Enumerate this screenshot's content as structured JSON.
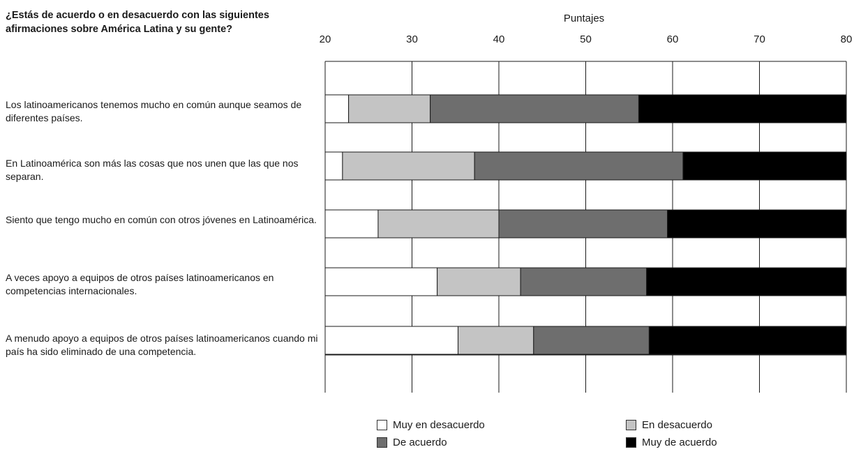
{
  "question": "¿Estás de acuerdo o en desacuerdo con las siguientes afirmaciones sobre América Latina y su gente?",
  "colors": {
    "muy_desacuerdo": "#ffffff",
    "desacuerdo": "#c4c4c4",
    "acuerdo": "#6e6e6e",
    "muy_acuerdo": "#000000",
    "grid": "#1a1a1a"
  },
  "chart_data": {
    "type": "bar",
    "orientation": "horizontal",
    "stacked": true,
    "xlabel": "Puntajes",
    "xlim": [
      20,
      80
    ],
    "xticks": [
      20,
      30,
      40,
      50,
      60,
      70,
      80
    ],
    "grid": true,
    "legend_position": "bottom",
    "categories": [
      "Los latinoamericanos tenemos mucho en común aunque seamos de diferentes países.",
      "En Latinoamérica son más las cosas que nos unen que las que nos separan.",
      "Siento que tengo mucho en común con otros jóvenes en Latinoamérica.",
      "A veces apoyo a equipos de otros países latinoamericanos en competencias internacionales.",
      "A menudo apoyo a equipos de otros países latinoamericanos cuando mi país ha sido eliminado de una competencia."
    ],
    "series": [
      {
        "name": "Muy en desacuerdo",
        "ends": [
          22.7,
          22.0,
          26.1,
          32.9,
          35.3
        ]
      },
      {
        "name": "En desacuerdo",
        "ends": [
          32.1,
          37.2,
          40.0,
          42.5,
          44.0
        ]
      },
      {
        "name": "De acuerdo",
        "ends": [
          56.1,
          61.2,
          59.4,
          57.0,
          57.3
        ]
      },
      {
        "name": "Muy de acuerdo",
        "ends": [
          80,
          80,
          80,
          80,
          80
        ]
      }
    ],
    "base": 20
  }
}
